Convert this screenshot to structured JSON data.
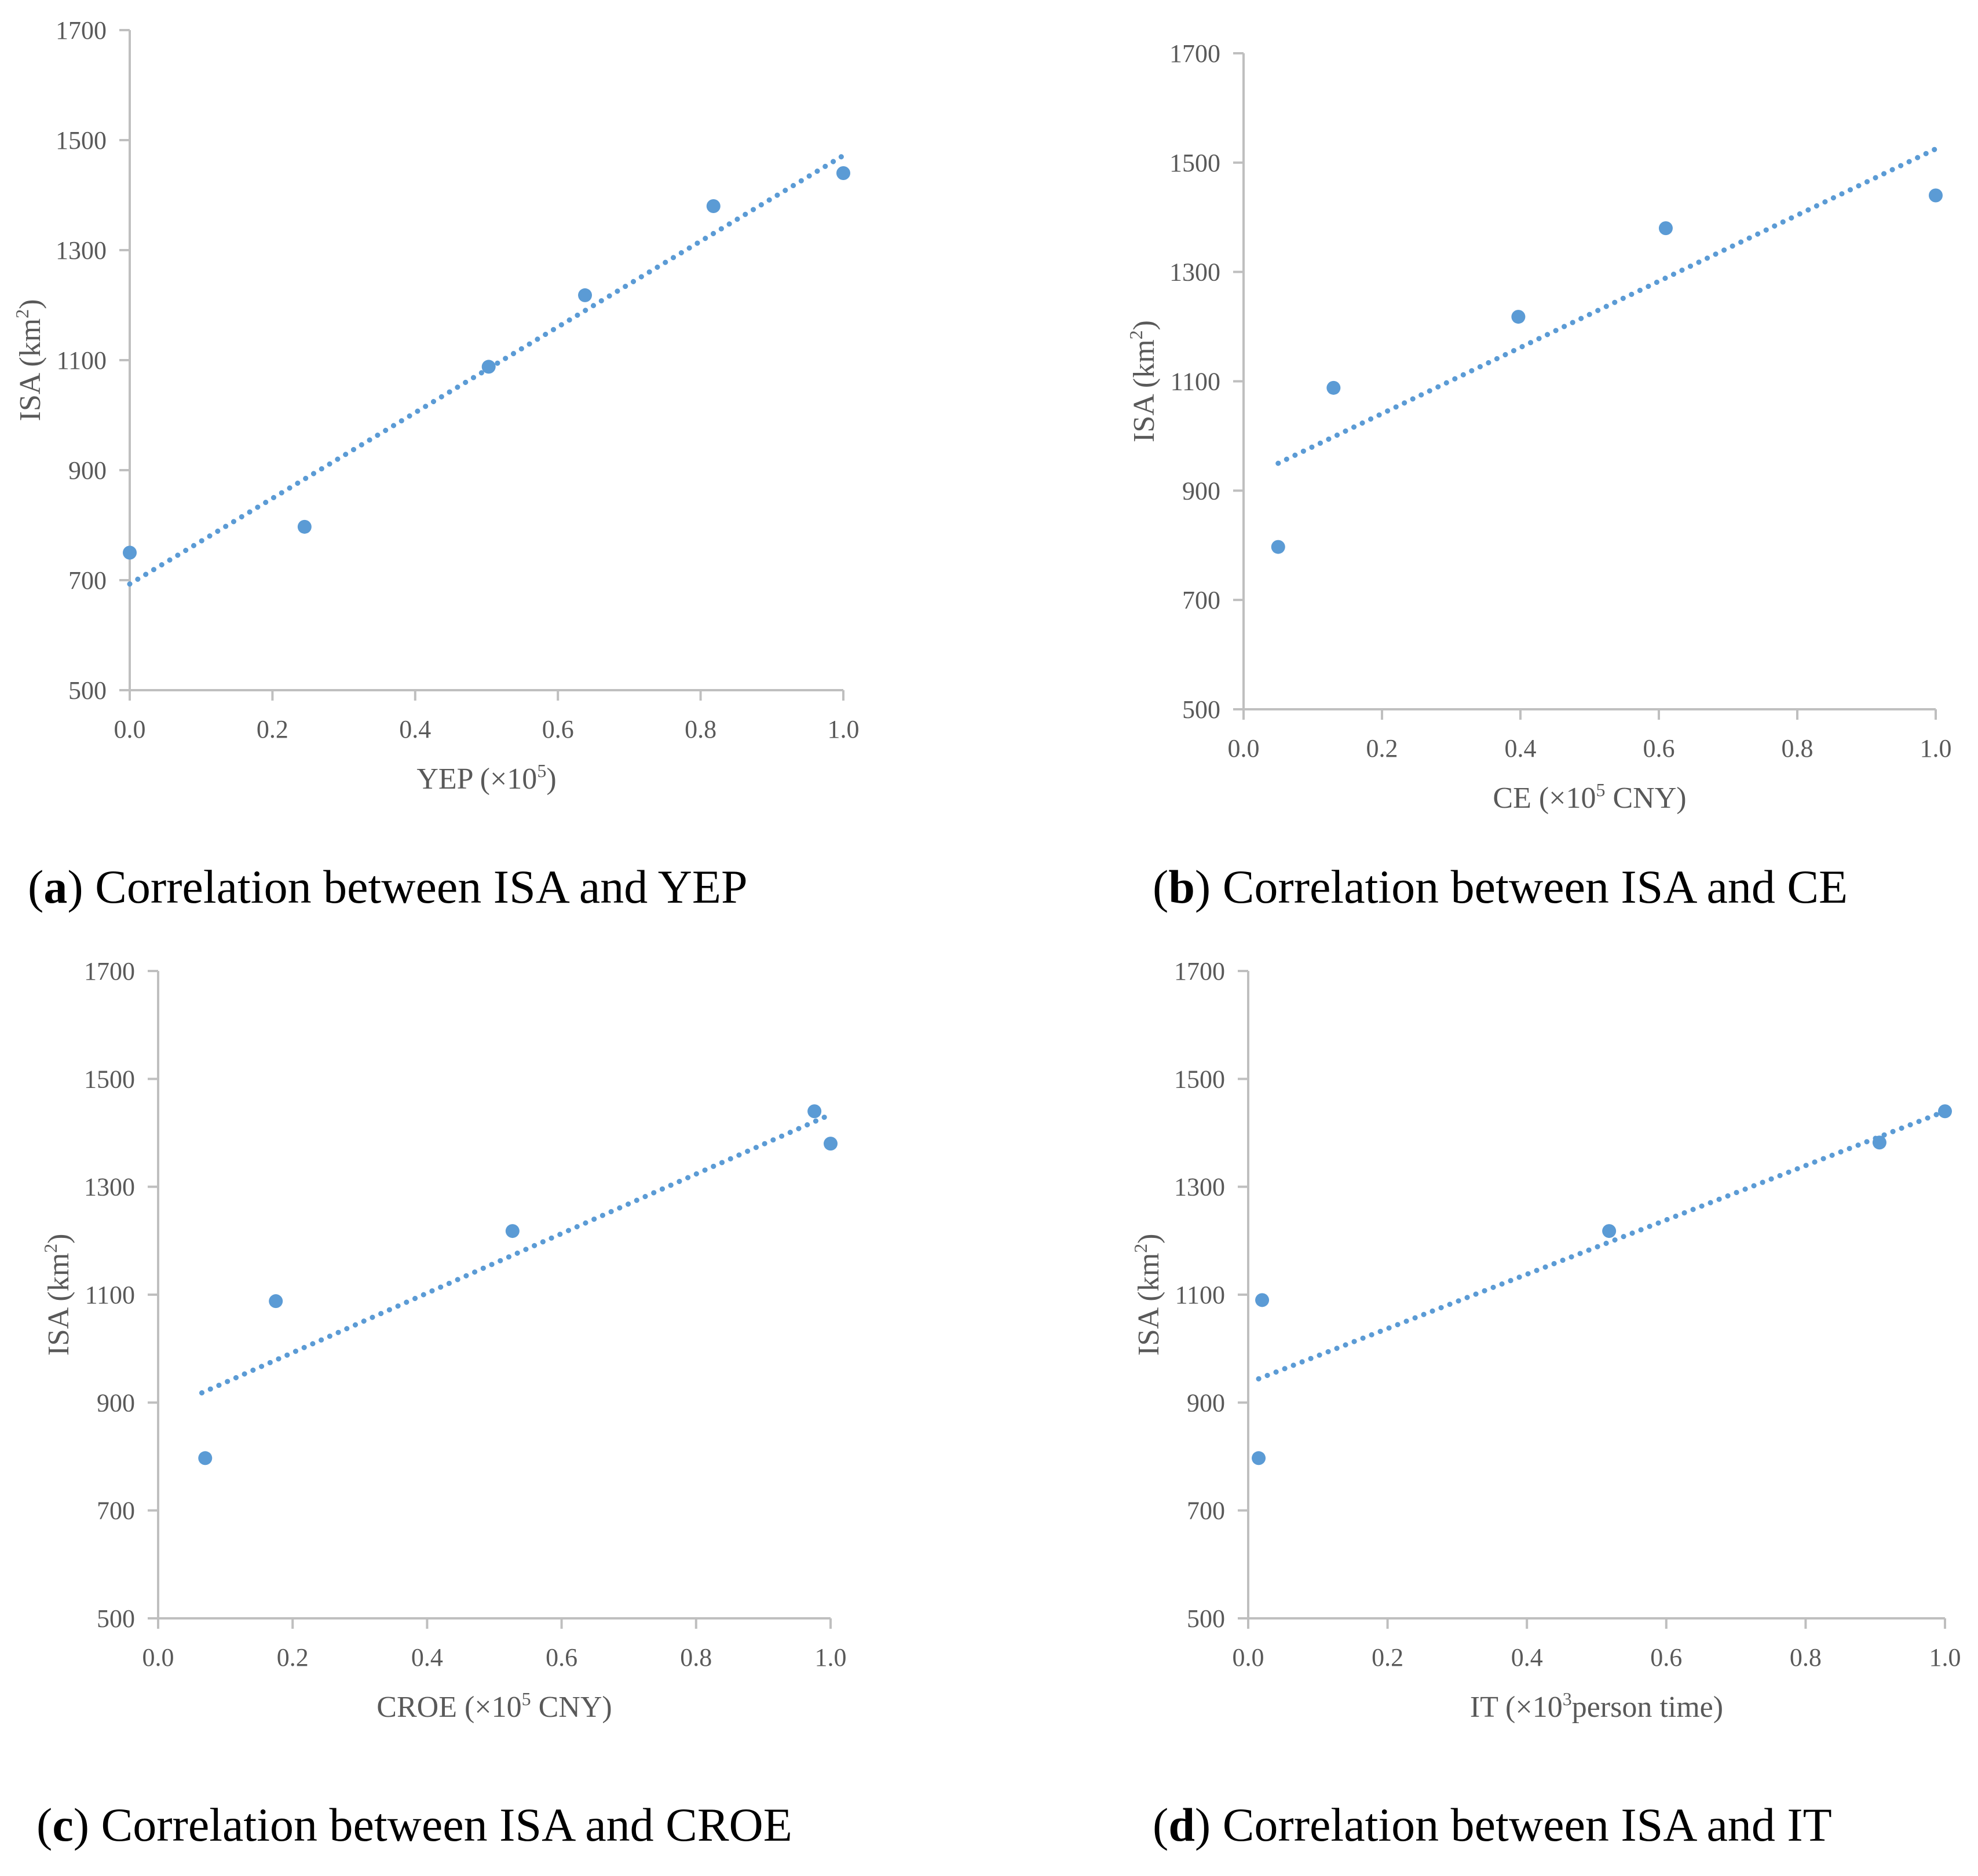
{
  "chart_data": [
    {
      "id": "a",
      "type": "scatter",
      "caption": {
        "letter": "a",
        "text": " Correlation between ISA and YEP"
      },
      "xlabel": {
        "main": "YEP (×10",
        "sup": "5",
        "tail": ")"
      },
      "ylabel": {
        "main": "ISA (km",
        "sup": "2",
        "tail": ")"
      },
      "xlim": [
        0.0,
        1.0
      ],
      "ylim": [
        500,
        1700
      ],
      "xticks": [
        "0.0",
        "0.2",
        "0.4",
        "0.6",
        "0.8",
        "1.0"
      ],
      "yticks": [
        "500",
        "700",
        "900",
        "1100",
        "1300",
        "1500",
        "1700"
      ],
      "points": [
        {
          "x": 0.0,
          "y": 750
        },
        {
          "x": 0.245,
          "y": 797
        },
        {
          "x": 0.503,
          "y": 1088
        },
        {
          "x": 0.638,
          "y": 1218
        },
        {
          "x": 0.818,
          "y": 1380
        },
        {
          "x": 1.0,
          "y": 1440
        }
      ],
      "trendline": {
        "style": "dotted",
        "x": [
          0.0,
          1.0
        ],
        "y": [
          693,
          1472
        ]
      },
      "color": "#5b9bd5"
    },
    {
      "id": "b",
      "type": "scatter",
      "caption": {
        "letter": "b",
        "text": " Correlation between ISA and CE"
      },
      "xlabel": {
        "main": "CE (×10",
        "sup": "5",
        "tail": " CNY)"
      },
      "ylabel": {
        "main": "ISA (km",
        "sup": "2",
        "tail": ")"
      },
      "xlim": [
        0.0,
        1.0
      ],
      "ylim": [
        500,
        1700
      ],
      "xticks": [
        "0.0",
        "0.2",
        "0.4",
        "0.6",
        "0.8",
        "1.0"
      ],
      "yticks": [
        "500",
        "700",
        "900",
        "1100",
        "1300",
        "1500",
        "1700"
      ],
      "points": [
        {
          "x": 0.05,
          "y": 797
        },
        {
          "x": 0.13,
          "y": 1088
        },
        {
          "x": 0.397,
          "y": 1218
        },
        {
          "x": 0.61,
          "y": 1380
        },
        {
          "x": 1.0,
          "y": 1440
        }
      ],
      "trendline": {
        "style": "dotted",
        "x": [
          0.05,
          1.0
        ],
        "y": [
          950,
          1525
        ]
      },
      "color": "#5b9bd5"
    },
    {
      "id": "c",
      "type": "scatter",
      "caption": {
        "letter": "c",
        "text": " Correlation between ISA and CROE"
      },
      "xlabel": {
        "main": "CROE (×10",
        "sup": "5",
        "tail": " CNY)"
      },
      "ylabel": {
        "main": "ISA (km",
        "sup": "2",
        "tail": ")"
      },
      "xlim": [
        0.0,
        1.0
      ],
      "ylim": [
        500,
        1700
      ],
      "xticks": [
        "0.0",
        "0.2",
        "0.4",
        "0.6",
        "0.8",
        "1.0"
      ],
      "yticks": [
        "500",
        "700",
        "900",
        "1100",
        "1300",
        "1500",
        "1700"
      ],
      "points": [
        {
          "x": 0.07,
          "y": 797
        },
        {
          "x": 0.175,
          "y": 1088
        },
        {
          "x": 0.527,
          "y": 1218
        },
        {
          "x": 0.976,
          "y": 1440
        },
        {
          "x": 1.0,
          "y": 1380
        }
      ],
      "trendline": {
        "style": "dotted",
        "x": [
          0.065,
          1.0
        ],
        "y": [
          918,
          1434
        ]
      },
      "color": "#5b9bd5"
    },
    {
      "id": "d",
      "type": "scatter",
      "caption": {
        "letter": "d",
        "text": " Correlation between ISA and IT"
      },
      "xlabel": {
        "main": "IT (×10",
        "sup": "3",
        "tail": "person time)"
      },
      "ylabel": {
        "main": "ISA (km",
        "sup": "2",
        "tail": ")"
      },
      "xlim": [
        0.0,
        1.0
      ],
      "ylim": [
        500,
        1700
      ],
      "xticks": [
        "0.0",
        "0.2",
        "0.4",
        "0.6",
        "0.8",
        "1.0"
      ],
      "yticks": [
        "500",
        "700",
        "900",
        "1100",
        "1300",
        "1500",
        "1700"
      ],
      "points": [
        {
          "x": 0.015,
          "y": 797
        },
        {
          "x": 0.02,
          "y": 1090
        },
        {
          "x": 0.518,
          "y": 1218
        },
        {
          "x": 0.906,
          "y": 1382
        },
        {
          "x": 1.0,
          "y": 1440
        }
      ],
      "trendline": {
        "style": "dotted",
        "x": [
          0.015,
          1.0
        ],
        "y": [
          944,
          1440
        ]
      },
      "color": "#5b9bd5"
    }
  ]
}
